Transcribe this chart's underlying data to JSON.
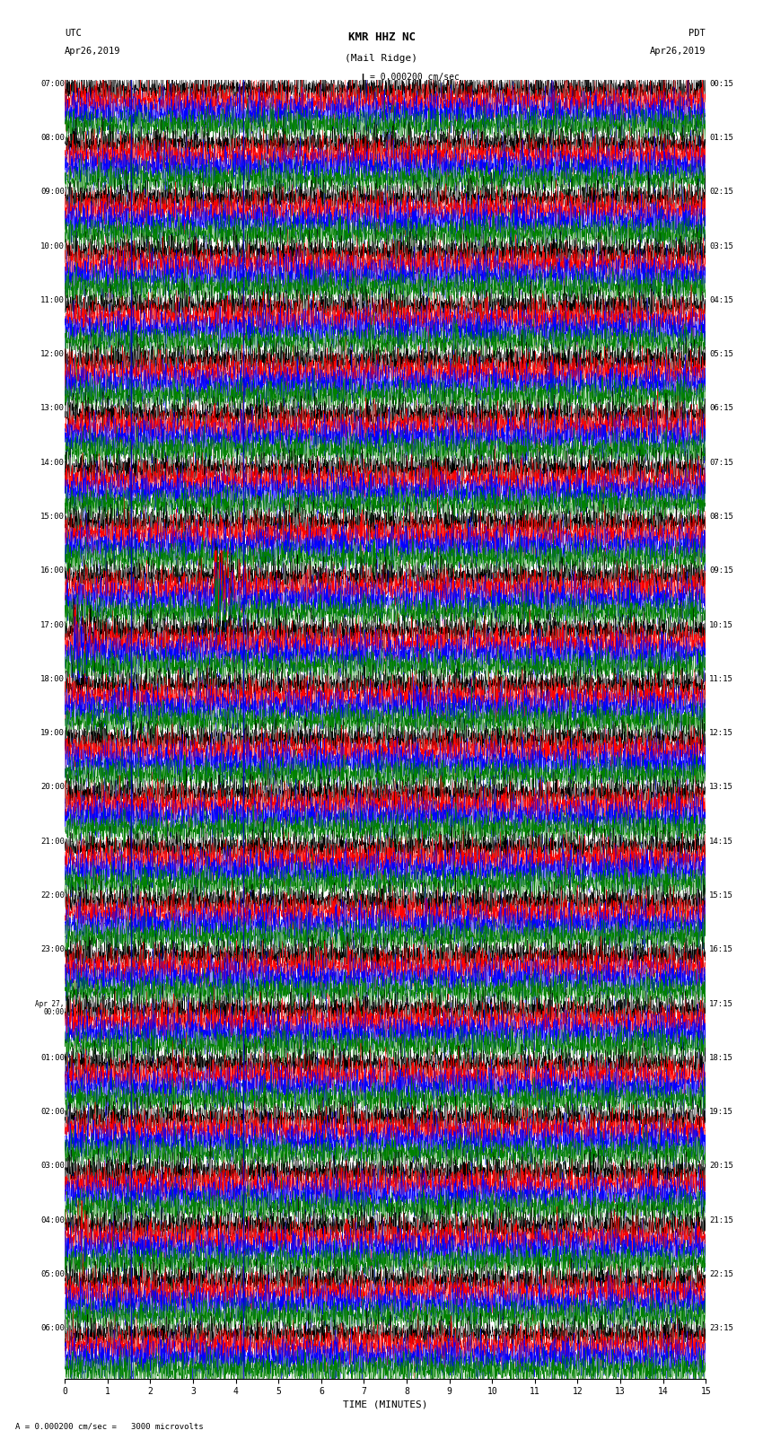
{
  "title_line1": "KMR HHZ NC",
  "title_line2": "(Mail Ridge)",
  "scale_label": "= 0.000200 cm/sec",
  "bottom_label": "= 0.000200 cm/sec =   3000 microvolts",
  "xlabel": "TIME (MINUTES)",
  "left_header_line1": "UTC",
  "left_header_line2": "Apr26,2019",
  "right_header_line1": "PDT",
  "right_header_line2": "Apr26,2019",
  "bg_color": "#ffffff",
  "trace_colors": [
    "#000000",
    "#ff0000",
    "#0000ff",
    "#008000"
  ],
  "num_rows": 24,
  "traces_per_row": 4,
  "minutes_per_row": 15,
  "xlim": [
    0,
    15
  ],
  "xticks": [
    0,
    1,
    2,
    3,
    4,
    5,
    6,
    7,
    8,
    9,
    10,
    11,
    12,
    13,
    14,
    15
  ],
  "vertical_line_minutes": [
    1.55,
    4.18
  ],
  "vertical_line_color": "#0000cc",
  "left_times_utc": [
    "07:00",
    "08:00",
    "09:00",
    "10:00",
    "11:00",
    "12:00",
    "13:00",
    "14:00",
    "15:00",
    "16:00",
    "17:00",
    "18:00",
    "19:00",
    "20:00",
    "21:00",
    "22:00",
    "23:00",
    "Apr 27,\n00:00",
    "01:00",
    "02:00",
    "03:00",
    "04:00",
    "05:00",
    "06:00"
  ],
  "right_times_pdt": [
    "00:15",
    "01:15",
    "02:15",
    "03:15",
    "04:15",
    "05:15",
    "06:15",
    "07:15",
    "08:15",
    "09:15",
    "10:15",
    "11:15",
    "12:15",
    "13:15",
    "14:15",
    "15:15",
    "16:15",
    "17:15",
    "18:15",
    "19:15",
    "20:15",
    "21:15",
    "22:15",
    "23:15"
  ],
  "figsize": [
    8.5,
    16.13
  ],
  "dpi": 100,
  "header_fontsize": 7.5,
  "tick_fontsize": 7,
  "title_fontsize": 9,
  "label_fontsize": 6.5,
  "trace_amplitude": 0.28,
  "samples_per_minute": 200,
  "earthquake_row": 9,
  "earthquake_minute": 3.5,
  "earthquake_row2": 10,
  "earthquake_minute2": 0.2,
  "event_row": 21,
  "event_minute_red": 0.3,
  "event_minute_black": 4.8
}
